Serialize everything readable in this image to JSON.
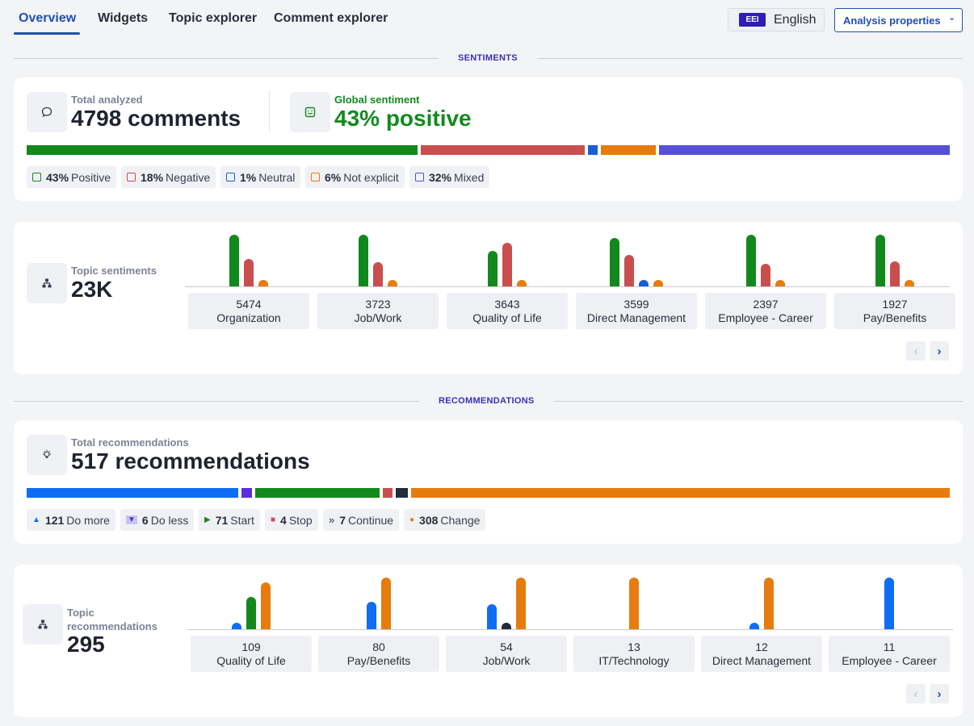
{
  "nav": {
    "tabs": [
      "Overview",
      "Widgets",
      "Topic explorer",
      "Comment explorer"
    ],
    "language_code": "EEI",
    "language": "English",
    "analysis_properties": "Analysis properties"
  },
  "colors": {
    "positive": "#12891c",
    "negative": "#c94f4f",
    "neutral": "#1760d4",
    "not_explicit": "#e67c0e",
    "mixed": "#5650d6",
    "do_more": "#0f6cf5",
    "do_less": "#5b2fd6",
    "start": "#12891c",
    "stop": "#c94f4f",
    "continue": "#232b3d",
    "change": "#e67c0e",
    "accent": "#1f4fb0"
  },
  "sentiments": {
    "section_label": "SENTIMENTS",
    "total_label": "Total analyzed",
    "total_value": "4798 comments",
    "global_label": "Global sentiment",
    "global_value": "43% positive",
    "distribution": [
      {
        "key": "positive",
        "pct": "43%",
        "label": "Positive",
        "fraction": 0.43,
        "icon": "smile-icon"
      },
      {
        "key": "negative",
        "pct": "18%",
        "label": "Negative",
        "fraction": 0.18,
        "icon": "frown-icon"
      },
      {
        "key": "neutral",
        "pct": "1%",
        "label": "Neutral",
        "fraction": 0.01,
        "icon": "neutral-face-icon"
      },
      {
        "key": "not_explicit",
        "pct": "6%",
        "label": "Not explicit",
        "fraction": 0.06,
        "icon": "question-face-icon"
      },
      {
        "key": "mixed",
        "pct": "32%",
        "label": "Mixed",
        "fraction": 0.32,
        "icon": "mixed-face-icon"
      }
    ]
  },
  "topic_sentiments": {
    "label": "Topic sentiments",
    "value": "23K",
    "categories": [
      {
        "count": "5474",
        "name": "Organization"
      },
      {
        "count": "3723",
        "name": "Job/Work"
      },
      {
        "count": "3643",
        "name": "Quality of Life"
      },
      {
        "count": "3599",
        "name": "Direct Management"
      },
      {
        "count": "2397",
        "name": "Employee - Career"
      },
      {
        "count": "1927",
        "name": "Pay/Benefits"
      }
    ],
    "chart_data": {
      "type": "bar",
      "categories": [
        "Organization",
        "Job/Work",
        "Quality of Life",
        "Direct Management",
        "Employee - Career",
        "Pay/Benefits"
      ],
      "series": [
        {
          "key": "positive",
          "values": [
            1.0,
            1.0,
            0.69,
            0.94,
            1.0,
            1.0
          ]
        },
        {
          "key": "negative",
          "values": [
            0.53,
            0.47,
            0.84,
            0.61,
            0.44,
            0.48
          ]
        },
        {
          "key": "neutral",
          "values": [
            0,
            0,
            0,
            0.13,
            0,
            0
          ]
        },
        {
          "key": "not_explicit",
          "values": [
            0.13,
            0.13,
            0.13,
            0.13,
            0.13,
            0.13
          ]
        }
      ],
      "ylim": [
        0,
        1
      ]
    }
  },
  "recommendations": {
    "section_label": "RECOMMENDATIONS",
    "total_label": "Total recommendations",
    "total_value": "517 recommendations",
    "distribution": [
      {
        "key": "do_more",
        "count": "121",
        "label": "Do more",
        "value": 121,
        "icon": "triangle-up-icon"
      },
      {
        "key": "do_less",
        "count": "6",
        "label": "Do less",
        "value": 6,
        "icon": "triangle-down-icon"
      },
      {
        "key": "start",
        "count": "71",
        "label": "Start",
        "value": 71,
        "icon": "play-icon"
      },
      {
        "key": "stop",
        "count": "4",
        "label": "Stop",
        "value": 4,
        "icon": "stop-icon"
      },
      {
        "key": "continue",
        "count": "7",
        "label": "Continue",
        "value": 7,
        "icon": "fast-forward-icon"
      },
      {
        "key": "change",
        "count": "308",
        "label": "Change",
        "value": 308,
        "icon": "dot-icon"
      }
    ]
  },
  "topic_recommendations": {
    "label": "Topic recommendations",
    "value": "295",
    "categories": [
      {
        "count": "109",
        "name": "Quality of Life"
      },
      {
        "count": "80",
        "name": "Pay/Benefits"
      },
      {
        "count": "54",
        "name": "Job/Work"
      },
      {
        "count": "13",
        "name": "IT/Technology"
      },
      {
        "count": "12",
        "name": "Direct Management"
      },
      {
        "count": "11",
        "name": "Employee - Career"
      }
    ],
    "chart_data": {
      "type": "bar",
      "categories": [
        "Quality of Life",
        "Pay/Benefits",
        "Job/Work",
        "IT/Technology",
        "Direct Management",
        "Employee - Career"
      ],
      "series": [
        {
          "key": "do_more",
          "values": [
            0.13,
            0.53,
            0.48,
            0,
            0.13,
            1.0
          ]
        },
        {
          "key": "continue",
          "values": [
            0,
            0,
            0.13,
            0,
            0,
            0
          ]
        },
        {
          "key": "start",
          "values": [
            0.63,
            0,
            0,
            0,
            0,
            0
          ]
        },
        {
          "key": "change",
          "values": [
            0.91,
            1.0,
            1.0,
            1.0,
            1.0,
            0
          ]
        }
      ],
      "ylim": [
        0,
        1
      ]
    }
  }
}
